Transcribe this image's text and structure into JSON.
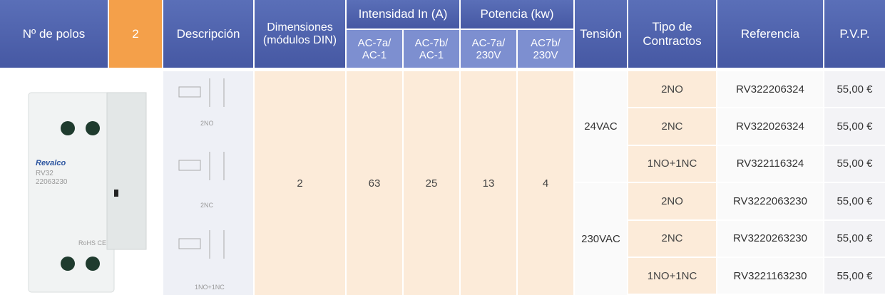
{
  "header": {
    "polos": "Nº de polos",
    "polos_value": "2",
    "descripcion": "Descripción",
    "dimensiones": [
      "Dimensiones",
      "(módulos DIN)"
    ],
    "intensidad": {
      "title": "Intensidad In (A)",
      "sub": [
        [
          "AC-7a/",
          "AC-1"
        ],
        [
          "AC-7b/",
          "AC-1"
        ]
      ]
    },
    "potencia": {
      "title": "Potencia (kw)",
      "sub": [
        [
          "AC-7a/",
          "230V"
        ],
        [
          "AC7b/",
          "230V"
        ]
      ]
    },
    "tension": "Tensión",
    "tipo": [
      "Tipo de",
      "Contractos"
    ],
    "referencia": "Referencia",
    "pvp": "P.V.P."
  },
  "product": {
    "brand": "Revalco",
    "model": "RV32",
    "code": "22063230",
    "marks": "RoHS CE"
  },
  "diagram_labels": [
    "2NO",
    "2NC",
    "1NO+1NC"
  ],
  "specs": {
    "dimensiones": 2,
    "ac7a_a": 63,
    "ac7b_a": 25,
    "ac7a_kw": 13,
    "ac7b_kw": 4
  },
  "groups": [
    {
      "tension": "24VAC",
      "rows": [
        {
          "tipo": "2NO",
          "referencia": "RV322206324",
          "pvp": "55,00 €"
        },
        {
          "tipo": "2NC",
          "referencia": "RV322026324",
          "pvp": "55,00 €"
        },
        {
          "tipo": "1NO+1NC",
          "referencia": "RV322116324",
          "pvp": "55,00 €"
        }
      ]
    },
    {
      "tension": "230VAC",
      "rows": [
        {
          "tipo": "2NO",
          "referencia": "RV3222063230",
          "pvp": "55,00 €"
        },
        {
          "tipo": "2NC",
          "referencia": "RV3220263230",
          "pvp": "55,00 €"
        },
        {
          "tipo": "1NO+1NC",
          "referencia": "RV3221163230",
          "pvp": "55,00 €"
        }
      ]
    }
  ]
}
